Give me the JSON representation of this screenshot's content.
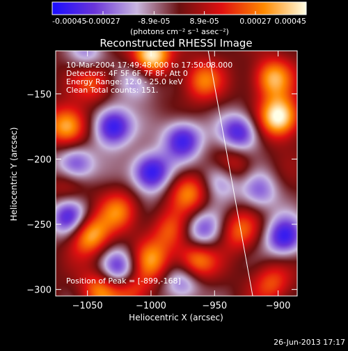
{
  "colorbar": {
    "tick_labels": [
      "-0.00045",
      "-0.00027",
      "-8.9e-05",
      "8.9e-05",
      "0.00027",
      "0.00045"
    ],
    "tick_values": [
      -0.00045,
      -0.00027,
      -8.9e-05,
      8.9e-05,
      0.00027,
      0.00045
    ],
    "range": [
      -0.00045,
      0.00045
    ],
    "units_text": "(photons cm⁻² s⁻¹ asec⁻²)",
    "colors": [
      "#1a0dff",
      "#6a35d8",
      "#c9b7e0",
      "#6a1010",
      "#e01010",
      "#ff8a00",
      "#ffffe6"
    ]
  },
  "chart_data": {
    "type": "heatmap",
    "title": "Reconstructed RHESSI Image",
    "xlabel": "Heliocentric X (arcsec)",
    "ylabel": "Heliocentric Y (arcsec)",
    "xlim": [
      -1075,
      -885
    ],
    "ylim": [
      -305,
      -117
    ],
    "x_ticks": [
      {
        "value": -1050,
        "label": "−1050"
      },
      {
        "value": -1000,
        "label": "−1000"
      },
      {
        "value": -950,
        "label": "−950"
      },
      {
        "value": -900,
        "label": "−900"
      }
    ],
    "y_ticks": [
      {
        "value": -150,
        "label": "−150"
      },
      {
        "value": -200,
        "label": "−200"
      },
      {
        "value": -250,
        "label": "−250"
      },
      {
        "value": -300,
        "label": "−300"
      }
    ],
    "annotations": [
      "10-Mar-2004 17:49:48.000 to 17:50:08.000",
      "Detectors: 4F 5F 6F 7F 8F, Att 0",
      "Energy Range: 12.0 - 25.0 keV",
      "Clean     Total counts: 151."
    ],
    "peak_label": "Position of Peak = [-899,-168]",
    "peak": {
      "x": -899,
      "y": -168
    },
    "limb_line": [
      {
        "x": -955,
        "y": -117
      },
      {
        "x": -920,
        "y": -305
      }
    ],
    "hot_spots": [
      {
        "x": -899,
        "y": -168,
        "v": 1.0
      },
      {
        "x": -1000,
        "y": -120,
        "v": 0.95
      },
      {
        "x": -1065,
        "y": -175,
        "v": 0.8
      },
      {
        "x": -905,
        "y": -138,
        "v": 0.7
      },
      {
        "x": -1048,
        "y": -258,
        "v": 0.75
      },
      {
        "x": -965,
        "y": -278,
        "v": 0.7
      },
      {
        "x": -1040,
        "y": -300,
        "v": 0.6
      },
      {
        "x": -1000,
        "y": -278,
        "v": 0.55
      },
      {
        "x": -970,
        "y": -225,
        "v": 0.6
      },
      {
        "x": -1025,
        "y": -240,
        "v": 0.5
      },
      {
        "x": -930,
        "y": -255,
        "v": 0.5
      },
      {
        "x": -960,
        "y": -140,
        "v": 0.55
      },
      {
        "x": -935,
        "y": -205,
        "v": 0.45
      },
      {
        "x": -905,
        "y": -295,
        "v": 0.45
      },
      {
        "x": -1045,
        "y": -140,
        "v": 0.5
      },
      {
        "x": -1065,
        "y": -220,
        "v": 0.35
      },
      {
        "x": -985,
        "y": -255,
        "v": 0.45
      },
      {
        "x": -1015,
        "y": -300,
        "v": 0.5
      }
    ],
    "cold_spots": [
      {
        "x": -1030,
        "y": -175,
        "v": -0.9
      },
      {
        "x": -1000,
        "y": -210,
        "v": -0.9
      },
      {
        "x": -1060,
        "y": -205,
        "v": -0.75
      },
      {
        "x": -975,
        "y": -185,
        "v": -0.8
      },
      {
        "x": -1065,
        "y": -245,
        "v": -0.7
      },
      {
        "x": -1025,
        "y": -285,
        "v": -0.7
      },
      {
        "x": -945,
        "y": -215,
        "v": -0.6
      },
      {
        "x": -930,
        "y": -180,
        "v": -0.75
      },
      {
        "x": -895,
        "y": -260,
        "v": -0.8
      },
      {
        "x": -960,
        "y": -255,
        "v": -0.6
      },
      {
        "x": -1010,
        "y": -140,
        "v": -0.5
      },
      {
        "x": -975,
        "y": -295,
        "v": -0.55
      },
      {
        "x": -1050,
        "y": -120,
        "v": -0.45
      },
      {
        "x": -915,
        "y": -225,
        "v": -0.5
      }
    ]
  },
  "footer": {
    "timestamp": "26-Jun-2013 17:17"
  }
}
